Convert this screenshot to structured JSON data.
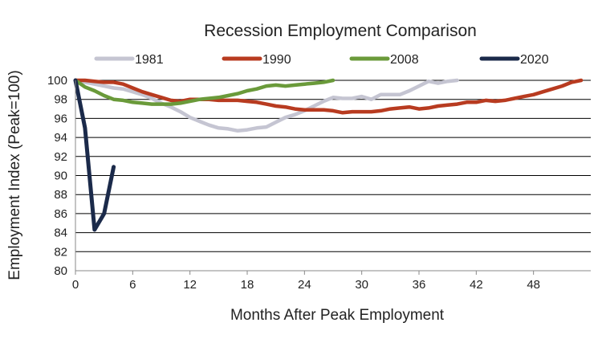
{
  "chart_data": {
    "type": "line",
    "title": "Recession Employment Comparison",
    "xlabel": "Months After Peak Employment",
    "ylabel": "Employment Index (Peak=100)",
    "xlim": [
      0,
      54
    ],
    "ylim": [
      80,
      100
    ],
    "xticks": [
      0,
      6,
      12,
      18,
      24,
      30,
      36,
      42,
      48
    ],
    "yticks": [
      80,
      82,
      84,
      86,
      88,
      90,
      92,
      94,
      96,
      98,
      100
    ],
    "grid": "horizontal",
    "legend_position": "top",
    "series": [
      {
        "name": "1981",
        "color": "#c5c5d2",
        "x": [
          0,
          1,
          2,
          3,
          4,
          5,
          6,
          7,
          8,
          9,
          10,
          11,
          12,
          13,
          14,
          15,
          16,
          17,
          18,
          19,
          20,
          21,
          22,
          23,
          24,
          25,
          26,
          27,
          28,
          29,
          30,
          31,
          32,
          33,
          34,
          35,
          36,
          37,
          38,
          39,
          40
        ],
        "values": [
          100,
          99.8,
          99.6,
          99.4,
          99.2,
          99.1,
          98.8,
          98.5,
          98.1,
          97.6,
          97.2,
          96.7,
          96.1,
          95.7,
          95.3,
          95.0,
          94.9,
          94.7,
          94.8,
          95.0,
          95.1,
          95.6,
          96.1,
          96.4,
          96.8,
          97.3,
          97.8,
          98.2,
          98.1,
          98.1,
          98.3,
          98.0,
          98.5,
          98.5,
          98.5,
          98.9,
          99.4,
          99.9,
          99.7,
          99.9,
          100.0
        ]
      },
      {
        "name": "1990",
        "color": "#b83b20",
        "x": [
          0,
          1,
          2,
          3,
          4,
          5,
          6,
          7,
          8,
          9,
          10,
          11,
          12,
          13,
          14,
          15,
          16,
          17,
          18,
          19,
          20,
          21,
          22,
          23,
          24,
          25,
          26,
          27,
          28,
          29,
          30,
          31,
          32,
          33,
          34,
          35,
          36,
          37,
          38,
          39,
          40,
          41,
          42,
          43,
          44,
          45,
          46,
          47,
          48,
          49,
          50,
          51,
          52,
          53
        ],
        "values": [
          100,
          100,
          99.9,
          99.8,
          99.8,
          99.6,
          99.2,
          98.8,
          98.5,
          98.2,
          97.9,
          97.8,
          98.0,
          98.0,
          98.0,
          97.9,
          97.9,
          97.9,
          97.8,
          97.7,
          97.5,
          97.3,
          97.2,
          97.0,
          96.9,
          96.9,
          96.9,
          96.8,
          96.6,
          96.7,
          96.7,
          96.7,
          96.8,
          97.0,
          97.1,
          97.2,
          97.0,
          97.1,
          97.3,
          97.4,
          97.5,
          97.7,
          97.7,
          97.9,
          97.8,
          97.9,
          98.1,
          98.3,
          98.5,
          98.8,
          99.1,
          99.4,
          99.8,
          100.0
        ]
      },
      {
        "name": "2008",
        "color": "#6a9a3a",
        "x": [
          0,
          1,
          2,
          3,
          4,
          5,
          6,
          7,
          8,
          9,
          10,
          11,
          12,
          13,
          14,
          15,
          16,
          17,
          18,
          19,
          20,
          21,
          22,
          23,
          24,
          25,
          26,
          27
        ],
        "values": [
          100,
          99.3,
          98.9,
          98.4,
          98.0,
          97.9,
          97.7,
          97.6,
          97.5,
          97.5,
          97.5,
          97.6,
          97.8,
          98.0,
          98.1,
          98.2,
          98.4,
          98.6,
          98.9,
          99.1,
          99.4,
          99.5,
          99.4,
          99.5,
          99.6,
          99.7,
          99.8,
          100.0
        ]
      },
      {
        "name": "2020",
        "color": "#1b2a4a",
        "x": [
          0,
          1,
          2,
          3,
          4
        ],
        "values": [
          100,
          95.0,
          84.3,
          86.0,
          90.9
        ]
      }
    ]
  }
}
